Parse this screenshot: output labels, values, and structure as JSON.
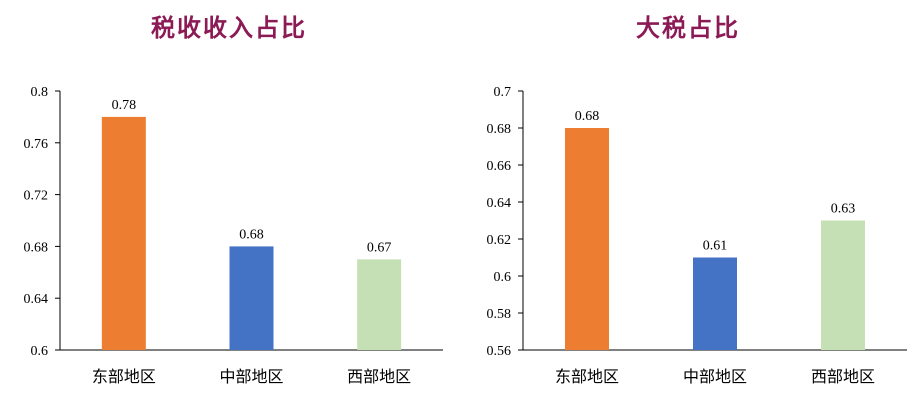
{
  "chart_data": [
    {
      "type": "bar",
      "title": "税收收入占比",
      "categories": [
        "东部地区",
        "中部地区",
        "西部地区"
      ],
      "values": [
        0.78,
        0.68,
        0.67
      ],
      "value_labels": [
        "0.78",
        "0.68",
        "0.67"
      ],
      "colors": [
        "#ED7D31",
        "#4472C4",
        "#C5E0B4"
      ],
      "ylim": [
        0.6,
        0.8
      ],
      "yticks": [
        "0.6",
        "0.64",
        "0.68",
        "0.72",
        "0.76",
        "0.8"
      ],
      "ytick_values": [
        0.6,
        0.64,
        0.68,
        0.72,
        0.76,
        0.8
      ],
      "grid": false,
      "legend": "none"
    },
    {
      "type": "bar",
      "title": "大税占比",
      "categories": [
        "东部地区",
        "中部地区",
        "西部地区"
      ],
      "values": [
        0.68,
        0.61,
        0.63
      ],
      "value_labels": [
        "0.68",
        "0.61",
        "0.63"
      ],
      "colors": [
        "#ED7D31",
        "#4472C4",
        "#C5E0B4"
      ],
      "ylim": [
        0.56,
        0.7
      ],
      "yticks": [
        "0.56",
        "0.58",
        "0.6",
        "0.62",
        "0.64",
        "0.66",
        "0.68",
        "0.7"
      ],
      "ytick_values": [
        0.56,
        0.58,
        0.6,
        0.62,
        0.64,
        0.66,
        0.68,
        0.7
      ],
      "grid": false,
      "legend": "none"
    }
  ]
}
